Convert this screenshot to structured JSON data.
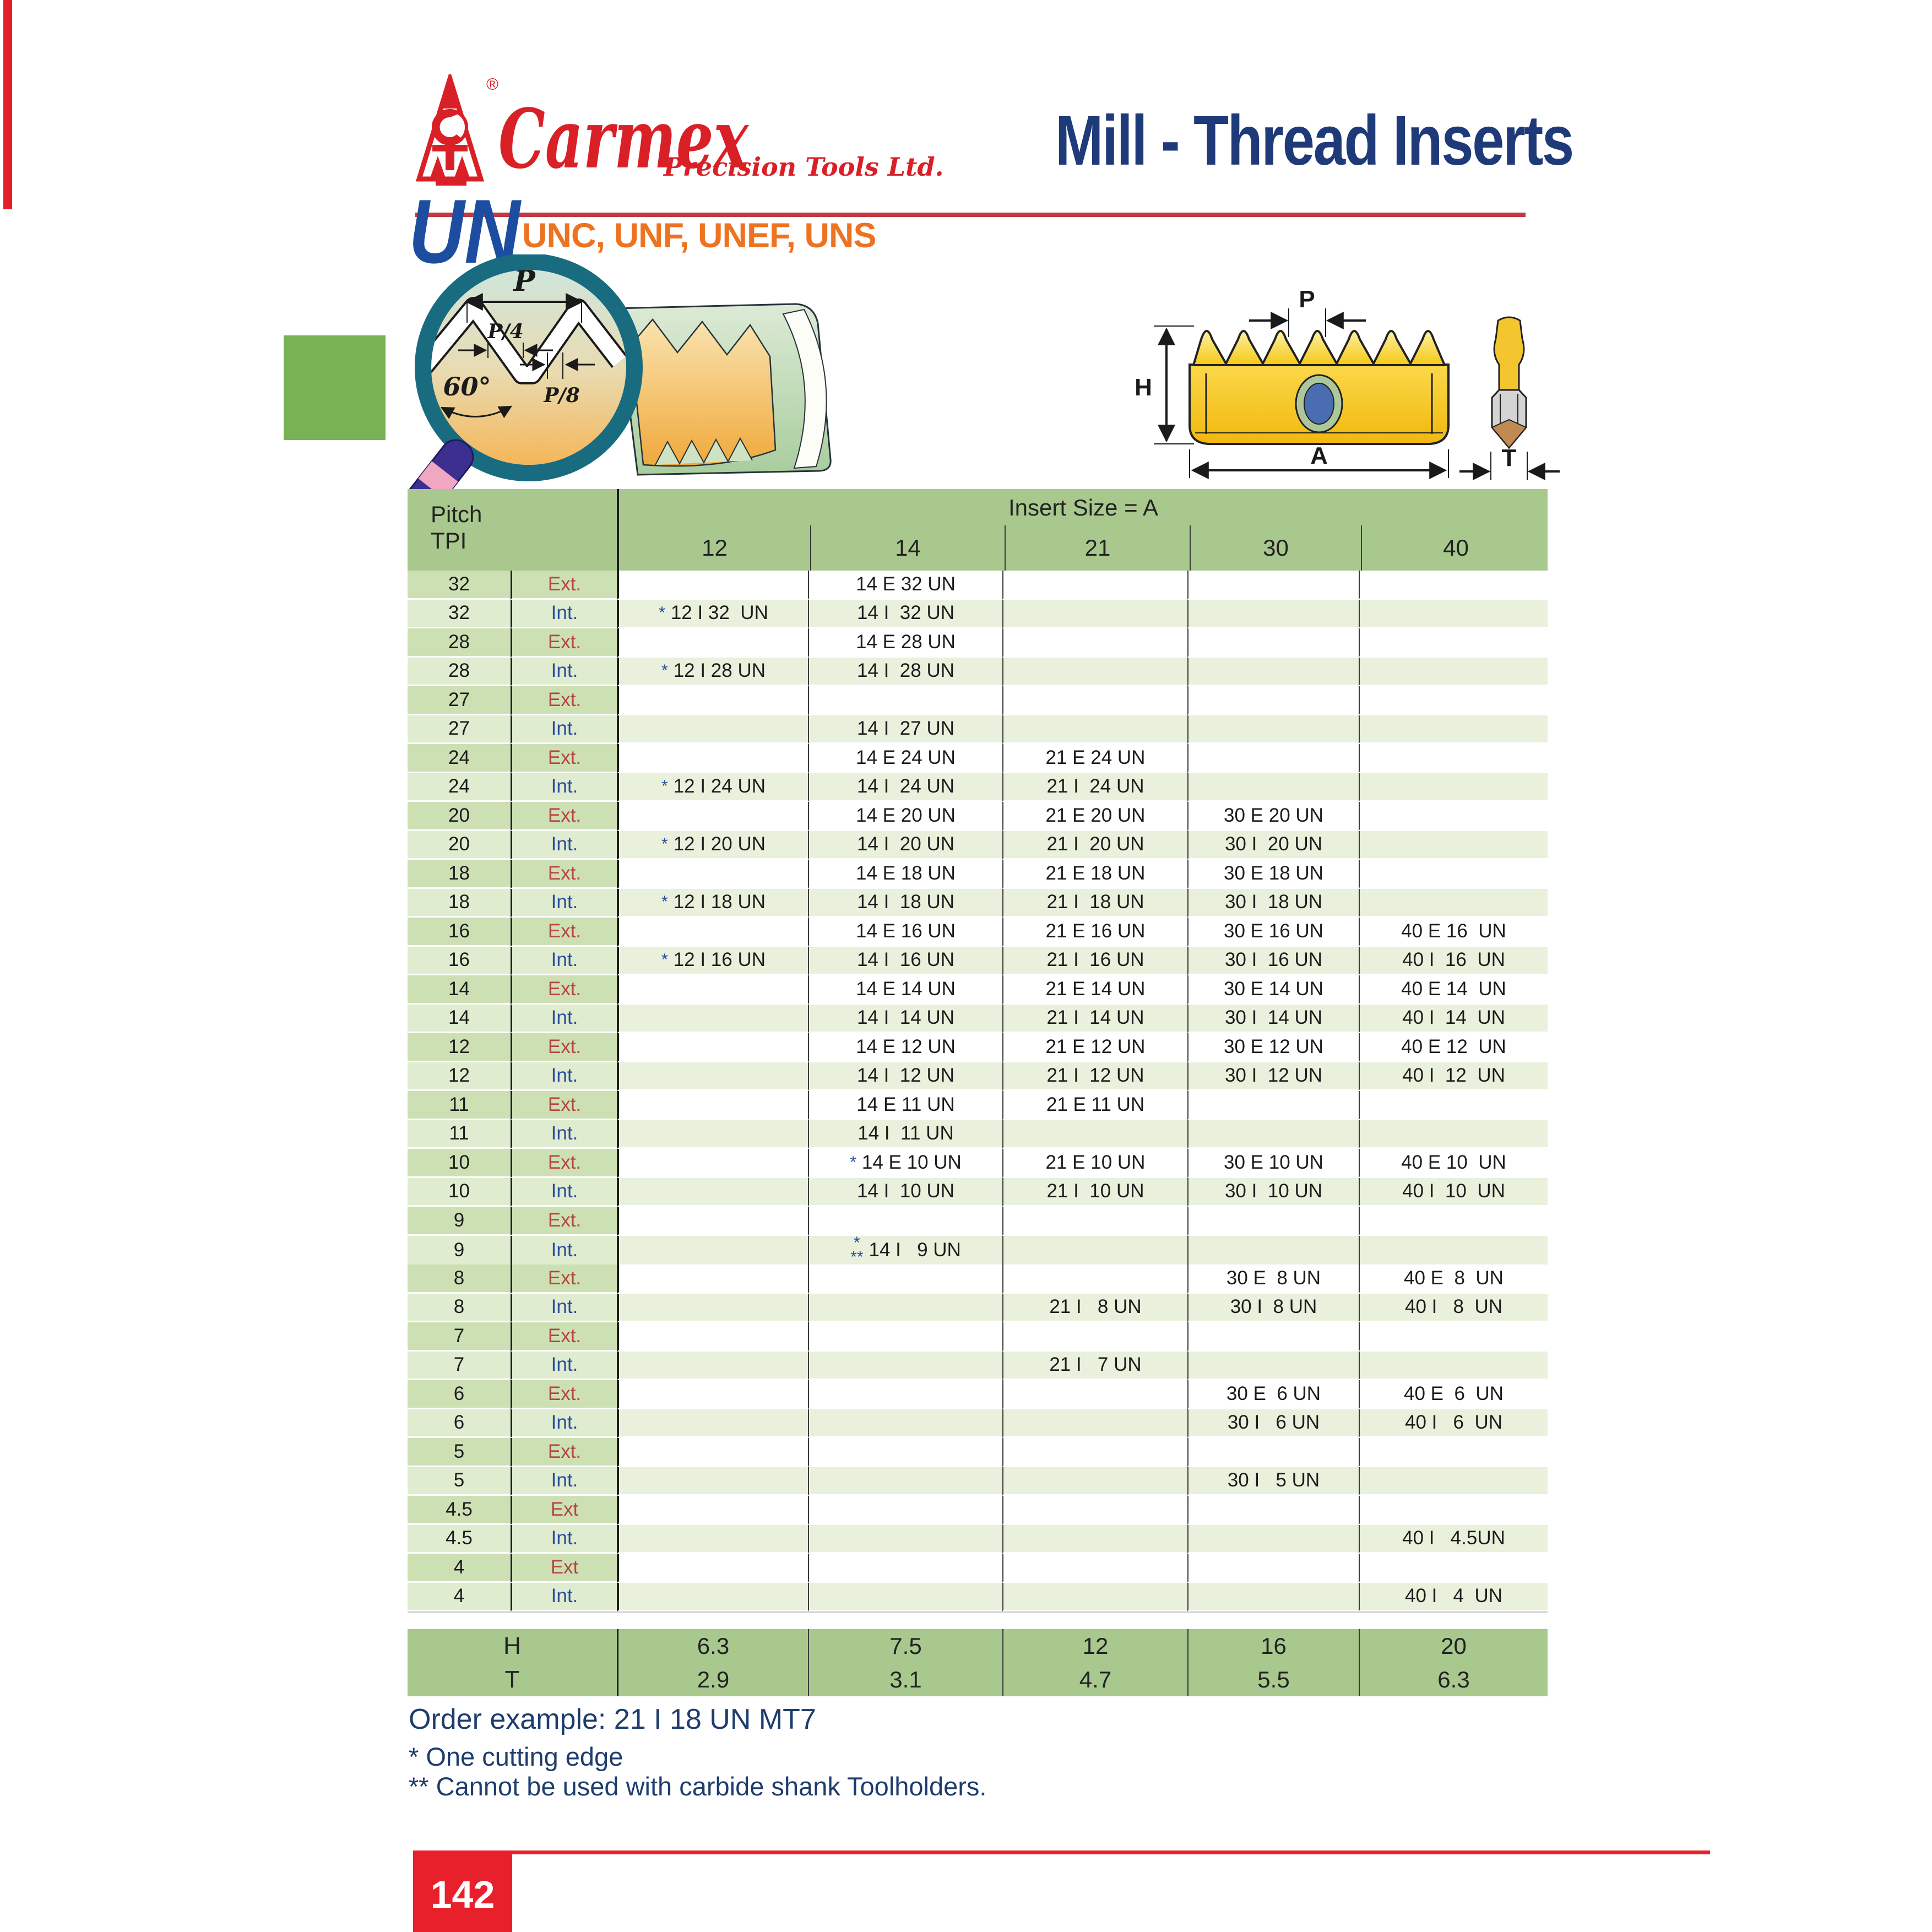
{
  "brand": {
    "name": "Carmex",
    "tagline": "Precision Tools Ltd.",
    "registered": "®"
  },
  "header": {
    "title": "Mill - Thread Inserts"
  },
  "section": {
    "code": "UN",
    "subtitle": "UNC, UNF, UNEF, UNS"
  },
  "diagram": {
    "magnifier": {
      "p": "P",
      "p4": "P/4",
      "p8": "P/8",
      "angle": "60°"
    },
    "insert": {
      "p": "P",
      "h": "H",
      "a": "A",
      "t": "T"
    }
  },
  "table": {
    "pitch_label": "Pitch",
    "tpi_label": "TPI",
    "span_header": "Insert Size = A",
    "columns": [
      "12",
      "14",
      "21",
      "30",
      "40"
    ],
    "rows": [
      {
        "tpi": "32",
        "lbl": "Ext.",
        "k": "e",
        "c": [
          "",
          "14 E 32 UN",
          "",
          "",
          ""
        ]
      },
      {
        "tpi": "32",
        "lbl": "Int.",
        "k": "i",
        "c": [
          "12 I 32  UN",
          "14 I  32 UN",
          "",
          "",
          ""
        ],
        "m": [
          "*",
          "",
          "",
          "",
          ""
        ]
      },
      {
        "tpi": "28",
        "lbl": "Ext.",
        "k": "e",
        "c": [
          "",
          "14 E 28 UN",
          "",
          "",
          ""
        ]
      },
      {
        "tpi": "28",
        "lbl": "Int.",
        "k": "i",
        "c": [
          "12 I 28 UN",
          "14 I  28 UN",
          "",
          "",
          ""
        ],
        "m": [
          "*",
          "",
          "",
          "",
          ""
        ]
      },
      {
        "tpi": "27",
        "lbl": "Ext.",
        "k": "e",
        "c": [
          "",
          "",
          "",
          "",
          ""
        ]
      },
      {
        "tpi": "27",
        "lbl": "Int.",
        "k": "i",
        "c": [
          "",
          "14 I  27 UN",
          "",
          "",
          ""
        ]
      },
      {
        "tpi": "24",
        "lbl": "Ext.",
        "k": "e",
        "c": [
          "",
          "14 E 24 UN",
          "21 E 24 UN",
          "",
          ""
        ]
      },
      {
        "tpi": "24",
        "lbl": "Int.",
        "k": "i",
        "c": [
          "12 I 24 UN",
          "14 I  24 UN",
          "21 I  24 UN",
          "",
          ""
        ],
        "m": [
          "*",
          "",
          "",
          "",
          ""
        ]
      },
      {
        "tpi": "20",
        "lbl": "Ext.",
        "k": "e",
        "c": [
          "",
          "14 E 20 UN",
          "21 E 20 UN",
          "30 E 20 UN",
          ""
        ]
      },
      {
        "tpi": "20",
        "lbl": "Int.",
        "k": "i",
        "c": [
          "12 I 20 UN",
          "14 I  20 UN",
          "21 I  20 UN",
          "30 I  20 UN",
          ""
        ],
        "m": [
          "*",
          "",
          "",
          "",
          ""
        ]
      },
      {
        "tpi": "18",
        "lbl": "Ext.",
        "k": "e",
        "c": [
          "",
          "14 E 18 UN",
          "21 E 18 UN",
          "30 E 18 UN",
          ""
        ]
      },
      {
        "tpi": "18",
        "lbl": "Int.",
        "k": "i",
        "c": [
          "12 I 18 UN",
          "14 I  18 UN",
          "21 I  18 UN",
          "30 I  18 UN",
          ""
        ],
        "m": [
          "*",
          "",
          "",
          "",
          ""
        ]
      },
      {
        "tpi": "16",
        "lbl": "Ext.",
        "k": "e",
        "c": [
          "",
          "14 E 16 UN",
          "21 E 16 UN",
          "30 E 16 UN",
          "40 E 16  UN"
        ]
      },
      {
        "tpi": "16",
        "lbl": "Int.",
        "k": "i",
        "c": [
          "12 I 16 UN",
          "14 I  16 UN",
          "21 I  16 UN",
          "30 I  16 UN",
          "40 I  16  UN"
        ],
        "m": [
          "*",
          "",
          "",
          "",
          ""
        ]
      },
      {
        "tpi": "14",
        "lbl": "Ext.",
        "k": "e",
        "c": [
          "",
          "14 E 14 UN",
          "21 E 14 UN",
          "30 E 14 UN",
          "40 E 14  UN"
        ]
      },
      {
        "tpi": "14",
        "lbl": "Int.",
        "k": "i",
        "c": [
          "",
          "14 I  14 UN",
          "21 I  14 UN",
          "30 I  14 UN",
          "40 I  14  UN"
        ]
      },
      {
        "tpi": "12",
        "lbl": "Ext.",
        "k": "e",
        "c": [
          "",
          "14 E 12 UN",
          "21 E 12 UN",
          "30 E 12 UN",
          "40 E 12  UN"
        ]
      },
      {
        "tpi": "12",
        "lbl": "Int.",
        "k": "i",
        "c": [
          "",
          "14 I  12 UN",
          "21 I  12 UN",
          "30 I  12 UN",
          "40 I  12  UN"
        ]
      },
      {
        "tpi": "11",
        "lbl": "Ext.",
        "k": "e",
        "c": [
          "",
          "14 E 11 UN",
          "21 E 11 UN",
          "",
          ""
        ]
      },
      {
        "tpi": "11",
        "lbl": "Int.",
        "k": "i",
        "c": [
          "",
          "14 I  11 UN",
          "",
          "",
          ""
        ]
      },
      {
        "tpi": "10",
        "lbl": "Ext.",
        "k": "e",
        "c": [
          "",
          "14 E 10 UN",
          "21 E 10 UN",
          "30 E 10 UN",
          "40 E 10  UN"
        ],
        "m": [
          "",
          "*",
          "",
          "",
          ""
        ]
      },
      {
        "tpi": "10",
        "lbl": "Int.",
        "k": "i",
        "c": [
          "",
          "14 I  10 UN",
          "21 I  10 UN",
          "30 I  10 UN",
          "40 I  10  UN"
        ]
      },
      {
        "tpi": "9",
        "lbl": "Ext.",
        "k": "e",
        "c": [
          "",
          "",
          "",
          "",
          ""
        ]
      },
      {
        "tpi": "9",
        "lbl": "Int.",
        "k": "i",
        "c": [
          "",
          "14 I   9 UN",
          "",
          "",
          ""
        ],
        "m": [
          "",
          "*|**",
          "",
          "",
          ""
        ]
      },
      {
        "tpi": "8",
        "lbl": "Ext.",
        "k": "e",
        "c": [
          "",
          "",
          "",
          "30 E  8 UN",
          "40 E  8  UN"
        ]
      },
      {
        "tpi": "8",
        "lbl": "Int.",
        "k": "i",
        "c": [
          "",
          "",
          "21 I   8 UN",
          "30 I  8 UN",
          "40 I   8  UN"
        ]
      },
      {
        "tpi": "7",
        "lbl": "Ext.",
        "k": "e",
        "c": [
          "",
          "",
          "",
          "",
          ""
        ]
      },
      {
        "tpi": "7",
        "lbl": "Int.",
        "k": "i",
        "c": [
          "",
          "",
          "21 I   7 UN",
          "",
          ""
        ]
      },
      {
        "tpi": "6",
        "lbl": "Ext.",
        "k": "e",
        "c": [
          "",
          "",
          "",
          "30 E  6 UN",
          "40 E  6  UN"
        ]
      },
      {
        "tpi": "6",
        "lbl": "Int.",
        "k": "i",
        "c": [
          "",
          "",
          "",
          "30 I   6 UN",
          "40 I   6  UN"
        ]
      },
      {
        "tpi": "5",
        "lbl": "Ext.",
        "k": "e",
        "c": [
          "",
          "",
          "",
          "",
          ""
        ]
      },
      {
        "tpi": "5",
        "lbl": "Int.",
        "k": "i",
        "c": [
          "",
          "",
          "",
          "30 I   5 UN",
          ""
        ]
      },
      {
        "tpi": "4.5",
        "lbl": "Ext",
        "k": "e",
        "c": [
          "",
          "",
          "",
          "",
          ""
        ]
      },
      {
        "tpi": "4.5",
        "lbl": "Int.",
        "k": "i",
        "c": [
          "",
          "",
          "",
          "",
          "40 I   4.5UN"
        ]
      },
      {
        "tpi": "4",
        "lbl": "Ext",
        "k": "e",
        "c": [
          "",
          "",
          "",
          "",
          ""
        ]
      },
      {
        "tpi": "4",
        "lbl": "Int.",
        "k": "i",
        "c": [
          "",
          "",
          "",
          "",
          "40 I   4  UN"
        ]
      }
    ],
    "footer": {
      "h_label": "H",
      "t_label": "T",
      "h": [
        "6.3",
        "7.5",
        "12",
        "16",
        "20"
      ],
      "t": [
        "2.9",
        "3.1",
        "4.7",
        "5.5",
        "6.3"
      ]
    }
  },
  "notes": {
    "order": "Order example: 21 I 18 UN MT7",
    "star": "* One cutting edge",
    "dstar": "** Cannot be used with carbide shank Toolholders."
  },
  "page_number": "142",
  "colors": {
    "header_green": "#a8c88e",
    "ext_label_green": "#cde0b4",
    "int_label_green": "#dfecd0",
    "int_row_green": "#e9f1dd",
    "accent_red": "#e32028",
    "brand_red": "#d92027",
    "navy": "#1e3a78",
    "orange": "#ed7321",
    "int_blue": "#2b4c9b",
    "ext_red": "#b5443f",
    "square_green": "#79b254",
    "insert_yellow": "#f6c513"
  }
}
